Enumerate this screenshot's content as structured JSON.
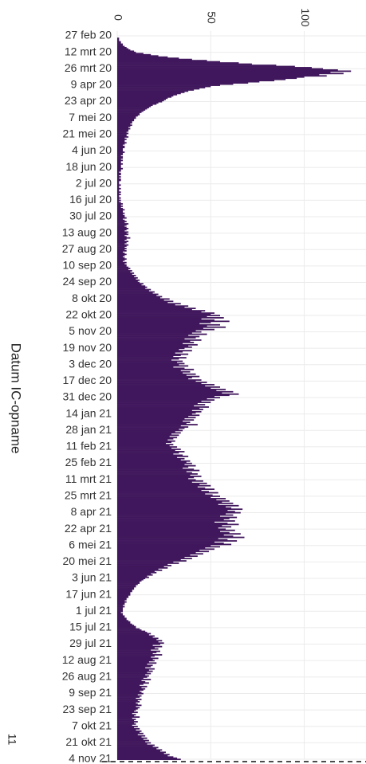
{
  "chart_data": {
    "type": "barh",
    "ylabel": "Datum IC-opname",
    "page_number": "11",
    "color": "#40175c",
    "grid": true,
    "xlim": [
      0,
      133
    ],
    "xticks": [
      0,
      50,
      100
    ],
    "categories": [
      "27 feb 20",
      null,
      null,
      null,
      null,
      null,
      null,
      null,
      null,
      null,
      null,
      null,
      null,
      null,
      "12 mrt 20",
      null,
      null,
      null,
      null,
      null,
      null,
      null,
      null,
      null,
      null,
      null,
      null,
      null,
      "26 mrt 20",
      null,
      null,
      null,
      null,
      null,
      null,
      null,
      null,
      null,
      null,
      null,
      null,
      null,
      "9 apr 20",
      null,
      null,
      null,
      null,
      null,
      null,
      null,
      null,
      null,
      null,
      null,
      null,
      null,
      "23 apr 20",
      null,
      null,
      null,
      null,
      null,
      null,
      null,
      null,
      null,
      null,
      null,
      null,
      null,
      "7 mei 20",
      null,
      null,
      null,
      null,
      null,
      null,
      null,
      null,
      null,
      null,
      null,
      null,
      null,
      "21 mei 20",
      null,
      null,
      null,
      null,
      null,
      null,
      null,
      null,
      null,
      null,
      null,
      null,
      null,
      "4 jun 20",
      null,
      null,
      null,
      null,
      null,
      null,
      null,
      null,
      null,
      null,
      null,
      null,
      null,
      "18 jun 20",
      null,
      null,
      null,
      null,
      null,
      null,
      null,
      null,
      null,
      null,
      null,
      null,
      null,
      "2 jul 20",
      null,
      null,
      null,
      null,
      null,
      null,
      null,
      null,
      null,
      null,
      null,
      null,
      null,
      "16 jul 20",
      null,
      null,
      null,
      null,
      null,
      null,
      null,
      null,
      null,
      null,
      null,
      null,
      null,
      "30 jul 20",
      null,
      null,
      null,
      null,
      null,
      null,
      null,
      null,
      null,
      null,
      null,
      null,
      null,
      "13 aug 20",
      null,
      null,
      null,
      null,
      null,
      null,
      null,
      null,
      null,
      null,
      null,
      null,
      null,
      "27 aug 20",
      null,
      null,
      null,
      null,
      null,
      null,
      null,
      null,
      null,
      null,
      null,
      null,
      null,
      "10 sep 20",
      null,
      null,
      null,
      null,
      null,
      null,
      null,
      null,
      null,
      null,
      null,
      null,
      null,
      "24 sep 20",
      null,
      null,
      null,
      null,
      null,
      null,
      null,
      null,
      null,
      null,
      null,
      null,
      null,
      "8 okt 20",
      null,
      null,
      null,
      null,
      null,
      null,
      null,
      null,
      null,
      null,
      null,
      null,
      null,
      "22 okt 20",
      null,
      null,
      null,
      null,
      null,
      null,
      null,
      null,
      null,
      null,
      null,
      null,
      null,
      "5 nov 20",
      null,
      null,
      null,
      null,
      null,
      null,
      null,
      null,
      null,
      null,
      null,
      null,
      null,
      "19 nov 20",
      null,
      null,
      null,
      null,
      null,
      null,
      null,
      null,
      null,
      null,
      null,
      null,
      null,
      "3 dec 20",
      null,
      null,
      null,
      null,
      null,
      null,
      null,
      null,
      null,
      null,
      null,
      null,
      null,
      "17 dec 20",
      null,
      null,
      null,
      null,
      null,
      null,
      null,
      null,
      null,
      null,
      null,
      null,
      null,
      "31 dec 20",
      null,
      null,
      null,
      null,
      null,
      null,
      null,
      null,
      null,
      null,
      null,
      null,
      null,
      "14 jan 21",
      null,
      null,
      null,
      null,
      null,
      null,
      null,
      null,
      null,
      null,
      null,
      null,
      null,
      "28 jan 21",
      null,
      null,
      null,
      null,
      null,
      null,
      null,
      null,
      null,
      null,
      null,
      null,
      null,
      "11 feb 21",
      null,
      null,
      null,
      null,
      null,
      null,
      null,
      null,
      null,
      null,
      null,
      null,
      null,
      "25 feb 21",
      null,
      null,
      null,
      null,
      null,
      null,
      null,
      null,
      null,
      null,
      null,
      null,
      null,
      "11 mrt 21",
      null,
      null,
      null,
      null,
      null,
      null,
      null,
      null,
      null,
      null,
      null,
      null,
      null,
      "25 mrt 21",
      null,
      null,
      null,
      null,
      null,
      null,
      null,
      null,
      null,
      null,
      null,
      null,
      null,
      "8 apr 21",
      null,
      null,
      null,
      null,
      null,
      null,
      null,
      null,
      null,
      null,
      null,
      null,
      null,
      "22 apr 21",
      null,
      null,
      null,
      null,
      null,
      null,
      null,
      null,
      null,
      null,
      null,
      null,
      null,
      "6 mei 21",
      null,
      null,
      null,
      null,
      null,
      null,
      null,
      null,
      null,
      null,
      null,
      null,
      null,
      "20 mei 21",
      null,
      null,
      null,
      null,
      null,
      null,
      null,
      null,
      null,
      null,
      null,
      null,
      null,
      "3 jun 21",
      null,
      null,
      null,
      null,
      null,
      null,
      null,
      null,
      null,
      null,
      null,
      null,
      null,
      "17 jun 21",
      null,
      null,
      null,
      null,
      null,
      null,
      null,
      null,
      null,
      null,
      null,
      null,
      null,
      "1 jul 21",
      null,
      null,
      null,
      null,
      null,
      null,
      null,
      null,
      null,
      null,
      null,
      null,
      null,
      "15 jul 21",
      null,
      null,
      null,
      null,
      null,
      null,
      null,
      null,
      null,
      null,
      null,
      null,
      null,
      "29 jul 21",
      null,
      null,
      null,
      null,
      null,
      null,
      null,
      null,
      null,
      null,
      null,
      null,
      null,
      "12 aug 21",
      null,
      null,
      null,
      null,
      null,
      null,
      null,
      null,
      null,
      null,
      null,
      null,
      null,
      "26 aug 21",
      null,
      null,
      null,
      null,
      null,
      null,
      null,
      null,
      null,
      null,
      null,
      null,
      null,
      "9 sep 21",
      null,
      null,
      null,
      null,
      null,
      null,
      null,
      null,
      null,
      null,
      null,
      null,
      null,
      "23 sep 21",
      null,
      null,
      null,
      null,
      null,
      null,
      null,
      null,
      null,
      null,
      null,
      null,
      null,
      "7 okt 21",
      null,
      null,
      null,
      null,
      null,
      null,
      null,
      null,
      null,
      null,
      null,
      null,
      null,
      "21 okt 21",
      null,
      null,
      null,
      null,
      null,
      null,
      null,
      null,
      null,
      null,
      null,
      null,
      null,
      "4 nov 21"
    ],
    "values": [
      0,
      0,
      1,
      1,
      1,
      2,
      2,
      3,
      3,
      4,
      5,
      6,
      7,
      9,
      10,
      14,
      18,
      22,
      27,
      33,
      40,
      48,
      55,
      65,
      72,
      85,
      95,
      104,
      110,
      118,
      125,
      114,
      121,
      108,
      112,
      100,
      96,
      90,
      84,
      76,
      70,
      62,
      55,
      50,
      47,
      44,
      41,
      38,
      36,
      34,
      32,
      30,
      29,
      27,
      26,
      25,
      24,
      22,
      21,
      19,
      18,
      17,
      16,
      15,
      14,
      13,
      12,
      12,
      11,
      10,
      10,
      9,
      9,
      8,
      8,
      7,
      8,
      7,
      6,
      7,
      6,
      6,
      5,
      6,
      5,
      5,
      6,
      4,
      5,
      4,
      4,
      5,
      4,
      3,
      4,
      4,
      3,
      3,
      3,
      4,
      3,
      3,
      2,
      3,
      3,
      2,
      3,
      2,
      2,
      3,
      2,
      2,
      2,
      3,
      2,
      2,
      1,
      2,
      2,
      1,
      2,
      1,
      2,
      2,
      1,
      1,
      1,
      2,
      1,
      1,
      2,
      1,
      1,
      2,
      1,
      2,
      1,
      1,
      2,
      1,
      2,
      1,
      2,
      3,
      2,
      3,
      2,
      3,
      4,
      3,
      3,
      4,
      3,
      4,
      4,
      5,
      3,
      4,
      5,
      4,
      6,
      5,
      4,
      5,
      6,
      5,
      4,
      6,
      5,
      6,
      4,
      5,
      7,
      5,
      4,
      6,
      5,
      4,
      6,
      5,
      4,
      5,
      4,
      5,
      3,
      4,
      5,
      4,
      3,
      4,
      5,
      4,
      3,
      5,
      4,
      5,
      5,
      6,
      7,
      6,
      8,
      7,
      9,
      8,
      10,
      9,
      11,
      10,
      12,
      11,
      12,
      14,
      13,
      15,
      16,
      15,
      18,
      17,
      20,
      19,
      22,
      21,
      24,
      23,
      28,
      25,
      30,
      27,
      34,
      31,
      38,
      36,
      42,
      40,
      47,
      45,
      52,
      50,
      55,
      48,
      57,
      45,
      52,
      60,
      50,
      44,
      55,
      48,
      58,
      46,
      52,
      42,
      45,
      40,
      48,
      38,
      44,
      42,
      36,
      45,
      39,
      41,
      35,
      43,
      38,
      40,
      36,
      33,
      40,
      35,
      31,
      38,
      34,
      30,
      37,
      33,
      29,
      35,
      32,
      36,
      33,
      38,
      30,
      36,
      41,
      34,
      39,
      35,
      42,
      37,
      44,
      40,
      38,
      45,
      42,
      48,
      45,
      52,
      47,
      55,
      50,
      58,
      53,
      62,
      56,
      65,
      60,
      52,
      55,
      48,
      52,
      45,
      50,
      43,
      47,
      41,
      49,
      44,
      46,
      40,
      45,
      42,
      40,
      44,
      38,
      42,
      36,
      41,
      35,
      39,
      37,
      43,
      34,
      38,
      36,
      33,
      35,
      31,
      34,
      29,
      33,
      28,
      32,
      30,
      27,
      31,
      29,
      26,
      30,
      28,
      32,
      29,
      34,
      31,
      36,
      33,
      30,
      35,
      38,
      32,
      36,
      34,
      39,
      37,
      40,
      36,
      42,
      38,
      35,
      41,
      44,
      37,
      40,
      43,
      39,
      45,
      41,
      38,
      42,
      46,
      40,
      48,
      44,
      50,
      43,
      47,
      52,
      45,
      49,
      54,
      47,
      51,
      55,
      50,
      58,
      53,
      60,
      56,
      62,
      54,
      65,
      58,
      61,
      67,
      59,
      63,
      66,
      58,
      62,
      55,
      64,
      60,
      57,
      63,
      52,
      59,
      65,
      56,
      61,
      54,
      58,
      63,
      55,
      60,
      66,
      57,
      62,
      68,
      54,
      59,
      64,
      52,
      57,
      61,
      50,
      55,
      47,
      52,
      44,
      49,
      42,
      46,
      39,
      43,
      36,
      40,
      34,
      37,
      30,
      33,
      27,
      29,
      25,
      27,
      22,
      24,
      20,
      21,
      18,
      19,
      16,
      17,
      15,
      14,
      13,
      12,
      12,
      11,
      10,
      10,
      9,
      9,
      8,
      8,
      7,
      7,
      7,
      6,
      6,
      5,
      5,
      4,
      5,
      4,
      4,
      3,
      4,
      3,
      3,
      3,
      3,
      2,
      3,
      3,
      4,
      4,
      5,
      5,
      6,
      7,
      7,
      8,
      9,
      10,
      10,
      12,
      13,
      15,
      16,
      18,
      17,
      20,
      19,
      22,
      21,
      24,
      22,
      25,
      23,
      19,
      24,
      20,
      22,
      18,
      23,
      21,
      19,
      24,
      20,
      18,
      22,
      19,
      20,
      17,
      21,
      16,
      19,
      18,
      15,
      20,
      17,
      19,
      16,
      18,
      15,
      17,
      16,
      14,
      18,
      13,
      15,
      17,
      14,
      12,
      16,
      13,
      15,
      14,
      12,
      13,
      14,
      11,
      13,
      12,
      10,
      13,
      11,
      12,
      10,
      11,
      13,
      10,
      12,
      11,
      10,
      9,
      11,
      8,
      10,
      9,
      12,
      8,
      10,
      9,
      11,
      9,
      10,
      8,
      11,
      9,
      12,
      10,
      13,
      12,
      14,
      11,
      15,
      13,
      16,
      14,
      17,
      15,
      18,
      16,
      20,
      19,
      22,
      21,
      24,
      23,
      26,
      25,
      28,
      27,
      30,
      32,
      34
    ]
  }
}
